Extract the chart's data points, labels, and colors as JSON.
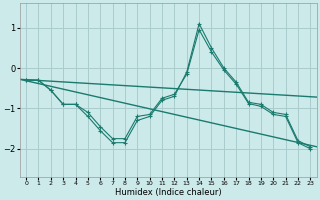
{
  "xlabel": "Humidex (Indice chaleur)",
  "bg_color": "#cceaea",
  "grid_color": "#aacccc",
  "line_color": "#1a7a6e",
  "xlim": [
    -0.5,
    23.5
  ],
  "ylim": [
    -2.7,
    1.6
  ],
  "xticks": [
    0,
    1,
    2,
    3,
    4,
    5,
    6,
    7,
    8,
    9,
    10,
    11,
    12,
    13,
    14,
    15,
    16,
    17,
    18,
    19,
    20,
    21,
    22,
    23
  ],
  "yticks": [
    -2,
    -1,
    0,
    1
  ],
  "series1_x": [
    0,
    1,
    2,
    3,
    4,
    5,
    6,
    7,
    8,
    9,
    10,
    11,
    12,
    13,
    14,
    15,
    16,
    17,
    18,
    19,
    20,
    21,
    22,
    23
  ],
  "series1_y": [
    -0.3,
    -0.3,
    -0.55,
    -0.9,
    -0.9,
    -1.2,
    -1.55,
    -1.85,
    -1.85,
    -1.3,
    -1.2,
    -0.8,
    -0.7,
    -0.1,
    1.1,
    0.5,
    0.0,
    -0.35,
    -0.85,
    -0.9,
    -1.1,
    -1.15,
    -1.8,
    -1.95
  ],
  "series2_x": [
    0,
    1,
    2,
    3,
    4,
    5,
    6,
    7,
    8,
    9,
    10,
    11,
    12,
    13,
    14,
    15,
    16,
    17,
    18,
    19,
    20,
    21,
    22,
    23
  ],
  "series2_y": [
    -0.3,
    -0.3,
    -0.55,
    -0.9,
    -0.9,
    -1.1,
    -1.45,
    -1.75,
    -1.75,
    -1.2,
    -1.15,
    -0.75,
    -0.65,
    -0.15,
    0.95,
    0.4,
    -0.05,
    -0.4,
    -0.88,
    -0.95,
    -1.15,
    -1.2,
    -1.85,
    -2.0
  ],
  "trend1_x": [
    -0.5,
    23.5
  ],
  "trend1_y": [
    -0.28,
    -0.72
  ],
  "trend2_x": [
    -0.5,
    23.5
  ],
  "trend2_y": [
    -0.28,
    -1.95
  ]
}
